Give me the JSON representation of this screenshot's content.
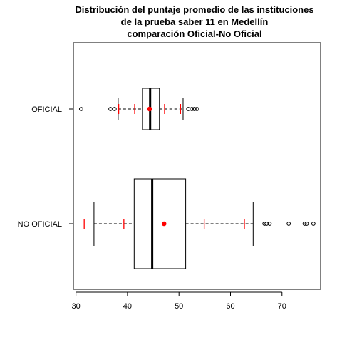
{
  "chart_data": {
    "type": "boxplot",
    "orientation": "horizontal",
    "title_lines": [
      "Distribución del puntaje promedio de las instituciones",
      "de la prueba saber 11 en Medellín",
      "comparación Oficial-No Oficial"
    ],
    "xlabel": "",
    "ylabel": "",
    "xlim": [
      29.5,
      77.5
    ],
    "x_ticks": [
      30,
      40,
      50,
      60,
      70
    ],
    "grid": false,
    "legend": "none",
    "colors": {
      "box": "#000000",
      "mean": "#ff0000",
      "sd_marks": "#ff0000",
      "outlier": "#000000"
    },
    "series": [
      {
        "name": "OFICIAL",
        "min": 38.2,
        "q1": 42.9,
        "median": 44.4,
        "q3": 46.2,
        "max": 50.8,
        "mean": 44.3,
        "sd_marks": [
          38.3,
          41.4,
          47.2,
          50.3
        ],
        "outliers": [
          31.0,
          36.7,
          37.5,
          51.8,
          52.5,
          53.0,
          53.5
        ]
      },
      {
        "name": "NO OFICIAL",
        "min": 33.5,
        "q1": 41.3,
        "median": 44.8,
        "q3": 51.3,
        "max": 64.4,
        "mean": 47.1,
        "sd_marks": [
          31.6,
          39.3,
          54.9,
          62.7
        ],
        "outliers": [
          66.6,
          67.0,
          67.6,
          71.3,
          74.4,
          74.8,
          76.1
        ]
      }
    ]
  }
}
